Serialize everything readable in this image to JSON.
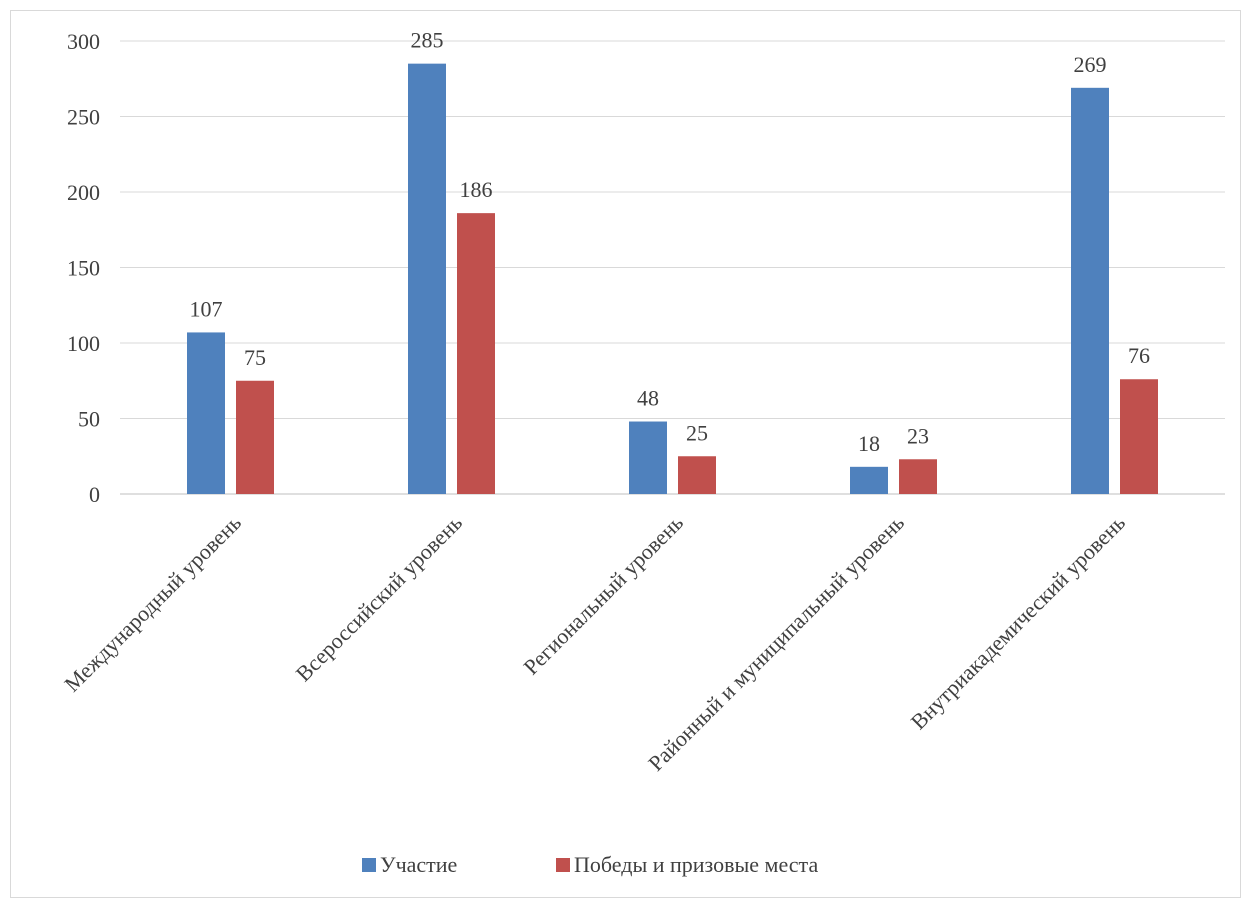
{
  "chart_data": {
    "type": "bar",
    "title": "",
    "xlabel": "",
    "ylabel": "",
    "categories": [
      "Международный уровень",
      "Всероссийский уровень",
      "Региональный уровень",
      "Районный и муниципальный уровень",
      "Внутриакадемический уровень"
    ],
    "series": [
      {
        "name": "Участие",
        "color": "#4f81bd",
        "values": [
          107,
          285,
          48,
          18,
          269
        ]
      },
      {
        "name": "Победы и призовые места",
        "color": "#c0504d",
        "values": [
          75,
          186,
          25,
          23,
          76
        ]
      }
    ],
    "ylim": [
      0,
      300
    ],
    "yticks": [
      0,
      50,
      100,
      150,
      200,
      250,
      300
    ],
    "grid": true,
    "data_labels": true,
    "legend_position": "bottom"
  }
}
